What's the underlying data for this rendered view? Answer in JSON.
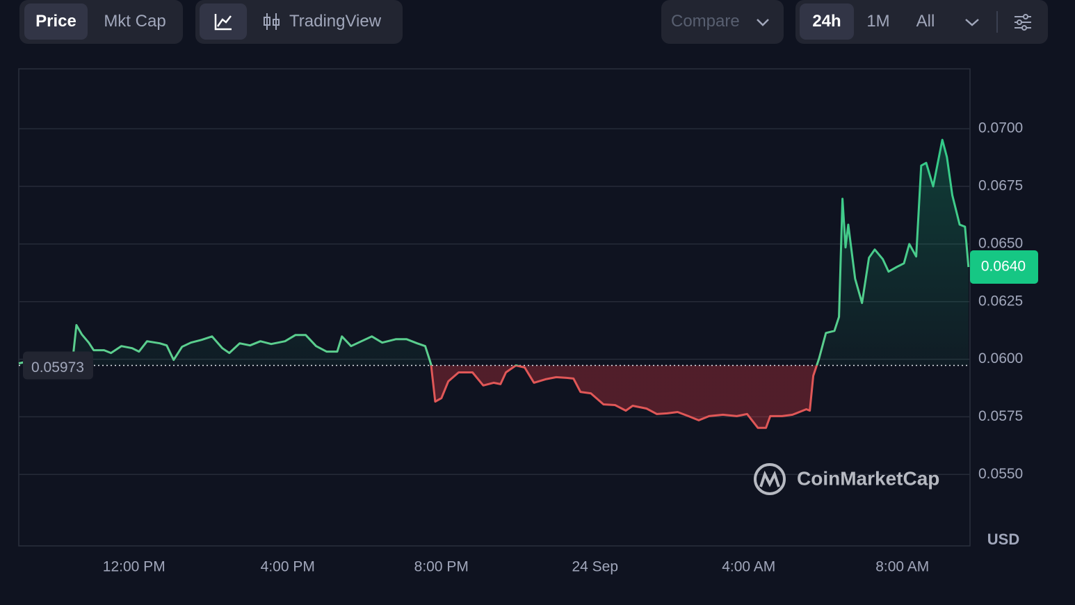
{
  "toolbar": {
    "price": "Price",
    "mkt_cap": "Mkt Cap",
    "tradingview": "TradingView",
    "compare": "Compare",
    "ranges": [
      "24h",
      "1M",
      "All"
    ]
  },
  "chart_data": {
    "type": "line",
    "x": [
      9.0,
      9.59,
      10.41,
      10.5,
      10.64,
      10.82,
      10.95,
      11.22,
      11.4,
      11.67,
      11.95,
      12.13,
      12.34,
      12.67,
      12.85,
      13.03,
      13.25,
      13.48,
      13.76,
      14.03,
      14.3,
      14.48,
      14.75,
      15.02,
      15.29,
      15.57,
      15.93,
      16.2,
      16.47,
      16.74,
      17.01,
      17.29,
      17.41,
      17.65,
      17.92,
      18.19,
      18.46,
      18.82,
      19.09,
      19.37,
      19.58,
      19.73,
      19.84,
      20.0,
      20.18,
      20.45,
      20.81,
      21.09,
      21.36,
      21.54,
      21.68,
      21.94,
      22.17,
      22.41,
      22.71,
      22.99,
      23.26,
      23.44,
      23.62,
      23.89,
      24.22,
      24.52,
      24.8,
      24.98,
      25.34,
      25.61,
      25.88,
      26.15,
      26.43,
      26.7,
      26.97,
      27.33,
      27.69,
      27.96,
      28.24,
      28.45,
      28.56,
      28.87,
      29.14,
      29.5,
      29.59,
      29.68,
      29.83,
      30.01,
      30.23,
      30.35,
      30.44,
      30.52,
      30.59,
      30.77,
      30.95,
      31.13,
      31.28,
      31.49,
      31.64,
      31.86,
      32.04,
      32.18,
      32.36,
      32.49,
      32.62,
      32.8,
      33.04,
      33.16,
      33.3,
      33.49,
      33.63,
      33.72
    ],
    "values": [
      0.05982,
      0.06003,
      0.06009,
      0.06148,
      0.06108,
      0.06072,
      0.06039,
      0.06039,
      0.06027,
      0.06057,
      0.06048,
      0.06033,
      0.06078,
      0.06069,
      0.0606,
      0.05997,
      0.06054,
      0.06072,
      0.06084,
      0.06099,
      0.06048,
      0.06027,
      0.06069,
      0.0606,
      0.06078,
      0.06066,
      0.06078,
      0.06105,
      0.06105,
      0.06057,
      0.06033,
      0.06033,
      0.06099,
      0.06057,
      0.06078,
      0.06099,
      0.06072,
      0.06087,
      0.06087,
      0.06069,
      0.06057,
      0.05979,
      0.05816,
      0.05831,
      0.05904,
      0.05943,
      0.05943,
      0.05886,
      0.05898,
      0.05892,
      0.05943,
      0.05973,
      0.05964,
      0.05898,
      0.05913,
      0.05922,
      0.05919,
      0.05916,
      0.05858,
      0.05852,
      0.05804,
      0.05801,
      0.05777,
      0.05798,
      0.05786,
      0.05762,
      0.05765,
      0.05771,
      0.05753,
      0.05735,
      0.05753,
      0.05759,
      0.05753,
      0.05762,
      0.05702,
      0.05702,
      0.05753,
      0.05753,
      0.05759,
      0.05783,
      0.05777,
      0.05928,
      0.06003,
      0.06114,
      0.06123,
      0.06184,
      0.06696,
      0.06485,
      0.06584,
      0.06349,
      0.06244,
      0.0644,
      0.06476,
      0.06434,
      0.0638,
      0.06401,
      0.06416,
      0.065,
      0.06446,
      0.0684,
      0.06852,
      0.0675,
      0.06952,
      0.06877,
      0.06711,
      0.06584,
      0.06575,
      0.064
    ],
    "color": "#16c784",
    "down_color": "#ea3943",
    "baseline": 0.05973,
    "current_price": {
      "value": 0.064,
      "label": "0.0640"
    },
    "xlim": [
      9.0,
      33.76
    ],
    "xticks": [
      {
        "value": 12,
        "label": "12:00 PM"
      },
      {
        "value": 16,
        "label": "4:00 PM"
      },
      {
        "value": 20,
        "label": "8:00 PM"
      },
      {
        "value": 24,
        "label": "24 Sep"
      },
      {
        "value": 28,
        "label": "4:00 AM"
      },
      {
        "value": 32,
        "label": "8:00 AM"
      }
    ],
    "ylim": [
      0.0519,
      0.0726
    ],
    "yticks": [
      {
        "value": 0.055,
        "label": "0.0550"
      },
      {
        "value": 0.0575,
        "label": "0.0575"
      },
      {
        "value": 0.06,
        "label": "0.0600"
      },
      {
        "value": 0.0625,
        "label": "0.0625"
      },
      {
        "value": 0.065,
        "label": "0.0650"
      },
      {
        "value": 0.0675,
        "label": "0.0675"
      },
      {
        "value": 0.07,
        "label": "0.0700"
      }
    ],
    "grid": true,
    "y_unit": "USD",
    "watermark": "CoinMarketCap"
  }
}
